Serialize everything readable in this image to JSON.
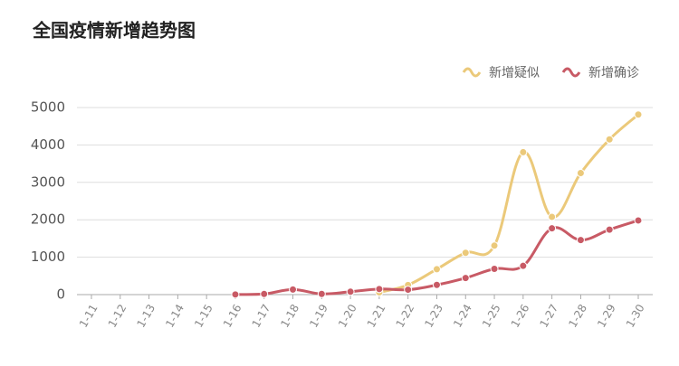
{
  "chart_data": {
    "type": "line",
    "title": "全国疫情新增趋势图",
    "categories": [
      "1-11",
      "1-12",
      "1-13",
      "1-14",
      "1-15",
      "1-16",
      "1-17",
      "1-18",
      "1-19",
      "1-20",
      "1-21",
      "1-22",
      "1-23",
      "1-24",
      "1-25",
      "1-26",
      "1-27",
      "1-28",
      "1-29",
      "1-30"
    ],
    "series": [
      {
        "name": "新增疑似",
        "color": "#ebc97a",
        "values": [
          null,
          null,
          null,
          null,
          null,
          null,
          null,
          null,
          null,
          null,
          60,
          257,
          680,
          1118,
          1309,
          3806,
          2077,
          3248,
          4148,
          4812
        ]
      },
      {
        "name": "新增确诊",
        "color": "#c85a65",
        "values": [
          null,
          null,
          null,
          null,
          null,
          4,
          17,
          136,
          19,
          77,
          149,
          131,
          259,
          444,
          688,
          769,
          1771,
          1459,
          1737,
          1982
        ]
      }
    ],
    "ylim": [
      0,
      5000
    ],
    "yticks": [
      0,
      1000,
      2000,
      3000,
      4000,
      5000
    ],
    "grid": true,
    "legend": "top-right"
  }
}
